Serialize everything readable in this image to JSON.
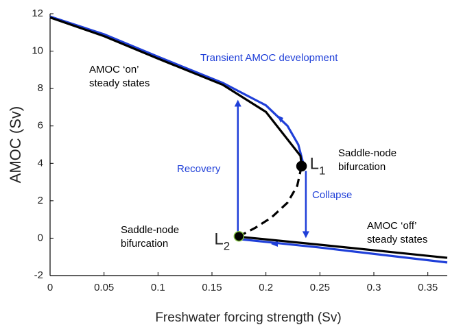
{
  "chart_data": {
    "type": "line",
    "xlabel": "Freshwater forcing strength (Sv)",
    "ylabel": "AMOC (Sv)",
    "xlim": [
      0,
      0.368
    ],
    "ylim": [
      -2,
      12
    ],
    "xticks": [
      0,
      0.05,
      0.1,
      0.15,
      0.2,
      0.25,
      0.3,
      0.35
    ],
    "yticks": [
      -2,
      0,
      2,
      4,
      6,
      8,
      10,
      12
    ],
    "series": [
      {
        "color": "#1f3fd8",
        "dashed": false,
        "x": [
          0,
          0.05,
          0.1,
          0.16,
          0.2,
          0.22,
          0.23,
          0.235
        ],
        "values": [
          11.85,
          10.9,
          9.7,
          8.3,
          7.1,
          6.0,
          5.0,
          3.9
        ]
      },
      {
        "color": "#1f3fd8",
        "dashed": false,
        "x": [
          0.175,
          0.25,
          0.368
        ],
        "values": [
          -0.05,
          -0.5,
          -1.3
        ]
      },
      {
        "color": "#000000",
        "dashed": false,
        "x": [
          0,
          0.05,
          0.1,
          0.16,
          0.2,
          0.232,
          0.233
        ],
        "values": [
          11.8,
          10.8,
          9.6,
          8.2,
          6.75,
          4.4,
          3.85
        ]
      },
      {
        "color": "#000000",
        "dashed": true,
        "x": [
          0.233,
          0.229,
          0.22,
          0.205,
          0.19,
          0.175
        ],
        "values": [
          3.85,
          2.8,
          1.9,
          1.1,
          0.55,
          0.1
        ]
      },
      {
        "color": "#000000",
        "dashed": false,
        "x": [
          0.175,
          0.18,
          0.25,
          0.368
        ],
        "values": [
          0.05,
          0.05,
          -0.35,
          -1.05
        ]
      }
    ],
    "arrows": [
      {
        "color": "#1f3fd8",
        "x": 0.174,
        "from": 0.1,
        "to": 7.4
      },
      {
        "color": "#1f3fd8",
        "x": 0.237,
        "from": 3.6,
        "to": 0
      }
    ],
    "points": [
      {
        "x": 0.233,
        "y": 3.85,
        "label": "L",
        "subscript": "1",
        "edge": "#000000"
      },
      {
        "x": 0.175,
        "y": 0.1,
        "label": "L",
        "subscript": "2",
        "edge": "#7fbf3f"
      }
    ],
    "annotations": [
      {
        "lines": [
          "AMOC  ‘on’",
          "steady states"
        ],
        "color": "#000000"
      },
      {
        "lines": [
          "Transient AMOC development"
        ],
        "color": "#1f3fd8"
      },
      {
        "lines": [
          "Recovery"
        ],
        "color": "#1f3fd8"
      },
      {
        "lines": [
          "Collapse"
        ],
        "color": "#1f3fd8"
      },
      {
        "lines": [
          "Saddle-node",
          "bifurcation"
        ],
        "color": "#000000"
      },
      {
        "lines": [
          "Saddle-node",
          "bifurcation"
        ],
        "color": "#000000"
      },
      {
        "lines": [
          "AMOC  ‘off’",
          "steady states"
        ],
        "color": "#000000"
      }
    ]
  }
}
